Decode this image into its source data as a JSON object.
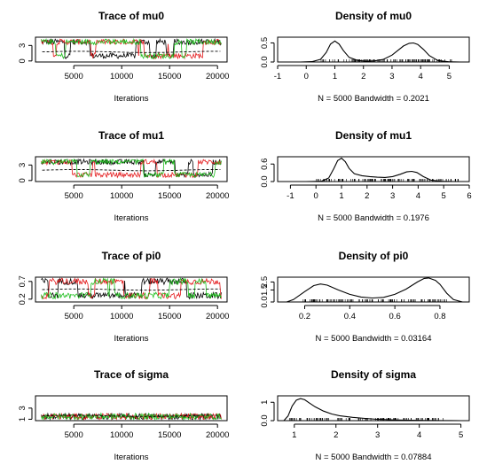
{
  "colors": {
    "chain1": "#000000",
    "chain2": "#e41a1c",
    "chain3": "#1fbf1f",
    "smooth": "#000000"
  },
  "chart_data": [
    {
      "type": "line",
      "kind": "trace",
      "title": "Trace of mu0",
      "xlabel": "Iterations",
      "xlim": [
        1000,
        21000
      ],
      "ylim": [
        -0.2,
        4.6
      ],
      "xticks": [
        5000,
        10000,
        15000,
        20000
      ],
      "yticks": [
        0,
        3
      ],
      "levels": [
        1.0,
        3.7
      ],
      "noise": 0.55,
      "smooth_level": 1.75
    },
    {
      "type": "line",
      "kind": "density",
      "title": "Density of mu0",
      "xlabel": "N = 5000   Bandwidth = 0.2021",
      "xlim": [
        -1,
        5.7
      ],
      "ylim": [
        0,
        0.65
      ],
      "xticks": [
        -1,
        0,
        1,
        2,
        3,
        4,
        5
      ],
      "yticks": [
        0.0,
        0.5
      ],
      "x": [
        -0.2,
        0.2,
        0.5,
        0.7,
        0.85,
        1.0,
        1.15,
        1.3,
        1.5,
        1.8,
        2.1,
        2.4,
        2.7,
        3.0,
        3.2,
        3.4,
        3.6,
        3.75,
        3.9,
        4.1,
        4.3,
        4.6,
        5.0,
        5.4
      ],
      "y": [
        0.0,
        0.01,
        0.07,
        0.25,
        0.47,
        0.55,
        0.47,
        0.3,
        0.12,
        0.04,
        0.02,
        0.03,
        0.07,
        0.18,
        0.3,
        0.42,
        0.49,
        0.5,
        0.46,
        0.33,
        0.17,
        0.04,
        0.005,
        0.0
      ],
      "rug": [
        0.5,
        5.1
      ]
    },
    {
      "type": "line",
      "kind": "trace",
      "title": "Trace of mu1",
      "xlabel": "Iterations",
      "xlim": [
        1000,
        21000
      ],
      "ylim": [
        -0.2,
        4.6
      ],
      "xticks": [
        5000,
        10000,
        15000,
        20000
      ],
      "yticks": [
        0,
        3
      ],
      "levels": [
        1.1,
        3.6
      ],
      "noise": 0.5,
      "smooth_level": 2.0
    },
    {
      "type": "line",
      "kind": "density",
      "title": "Density of mu1",
      "xlabel": "N = 5000   Bandwidth = 0.1976",
      "xlim": [
        -1.5,
        6.0
      ],
      "ylim": [
        0,
        0.85
      ],
      "xticks": [
        -1,
        0,
        1,
        2,
        3,
        4,
        5,
        6
      ],
      "yticks": [
        0.0,
        0.6
      ],
      "x": [
        -0.4,
        0.2,
        0.5,
        0.7,
        0.85,
        1.0,
        1.15,
        1.3,
        1.5,
        1.8,
        2.1,
        2.4,
        2.7,
        3.0,
        3.3,
        3.55,
        3.75,
        3.95,
        4.2,
        4.5,
        4.9,
        5.5
      ],
      "y": [
        0.0,
        0.01,
        0.12,
        0.45,
        0.72,
        0.8,
        0.68,
        0.45,
        0.27,
        0.2,
        0.17,
        0.15,
        0.14,
        0.17,
        0.25,
        0.33,
        0.35,
        0.31,
        0.17,
        0.05,
        0.008,
        0.0
      ],
      "rug": [
        0.0,
        5.6
      ]
    },
    {
      "type": "line",
      "kind": "trace",
      "title": "Trace of pi0",
      "xlabel": "Iterations",
      "xlim": [
        1000,
        21000
      ],
      "ylim": [
        0.12,
        0.82
      ],
      "xticks": [
        5000,
        10000,
        15000,
        20000
      ],
      "yticks": [
        0.2,
        0.7
      ],
      "levels": [
        0.3,
        0.7
      ],
      "noise": 0.09,
      "smooth_level": 0.47
    },
    {
      "type": "line",
      "kind": "density",
      "title": "Density of pi0",
      "xlabel": "N = 5000   Bandwidth = 0.03164",
      "xlim": [
        0.08,
        0.93
      ],
      "ylim": [
        0,
        3.1
      ],
      "xticks": [
        0.2,
        0.4,
        0.6,
        0.8
      ],
      "yticks": [
        0.0,
        1.5,
        2.5
      ],
      "x": [
        0.12,
        0.15,
        0.2,
        0.24,
        0.27,
        0.3,
        0.35,
        0.4,
        0.45,
        0.5,
        0.55,
        0.6,
        0.65,
        0.7,
        0.73,
        0.75,
        0.78,
        0.8,
        0.83,
        0.86,
        0.9
      ],
      "y": [
        0.0,
        0.3,
        1.3,
        2.05,
        2.25,
        2.1,
        1.5,
        0.95,
        0.62,
        0.5,
        0.58,
        0.95,
        1.6,
        2.5,
        2.95,
        3.0,
        2.7,
        2.2,
        1.1,
        0.3,
        0.0
      ],
      "rug": [
        0.18,
        0.84
      ]
    },
    {
      "type": "line",
      "kind": "trace",
      "title": "Trace of sigma",
      "xlabel": "Iterations",
      "xlim": [
        1000,
        21000
      ],
      "ylim": [
        0.75,
        5.2
      ],
      "xticks": [
        5000,
        10000,
        15000,
        20000
      ],
      "yticks": [
        1,
        3
      ],
      "levels": [
        1.5
      ],
      "noise": 0.55,
      "smooth_level": 1.6
    },
    {
      "type": "line",
      "kind": "density",
      "title": "Density of sigma",
      "xlabel": "N = 5000   Bandwidth = 0.07884",
      "xlim": [
        0.6,
        5.2
      ],
      "ylim": [
        0,
        1.35
      ],
      "xticks": [
        1,
        2,
        3,
        4,
        5
      ],
      "yticks": [
        0.0,
        1.0
      ],
      "x": [
        0.75,
        0.85,
        0.95,
        1.05,
        1.15,
        1.25,
        1.35,
        1.5,
        1.7,
        1.9,
        2.1,
        2.4,
        2.7,
        3.0,
        3.4,
        3.8,
        4.2,
        4.6,
        5.0
      ],
      "y": [
        0.0,
        0.25,
        0.8,
        1.12,
        1.2,
        1.14,
        0.98,
        0.75,
        0.52,
        0.36,
        0.26,
        0.18,
        0.12,
        0.07,
        0.04,
        0.02,
        0.01,
        0.003,
        0.0
      ],
      "rug": [
        0.85,
        4.6
      ]
    }
  ]
}
